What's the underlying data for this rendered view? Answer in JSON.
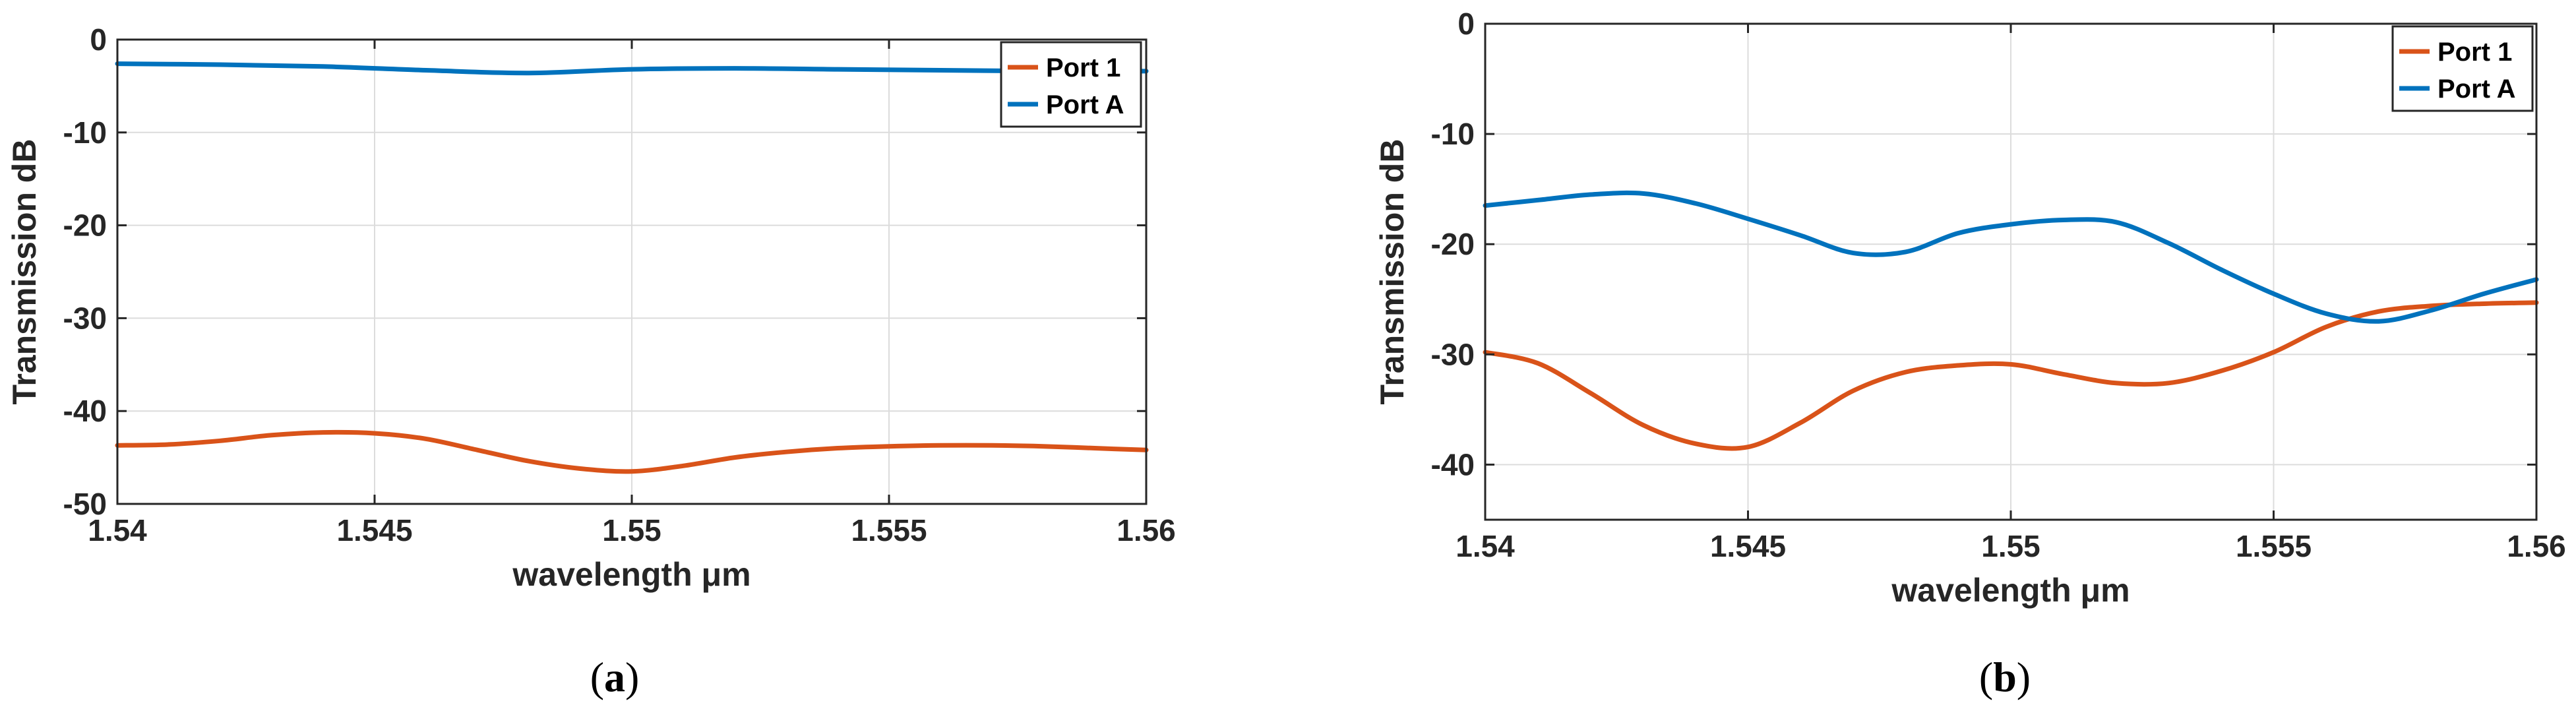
{
  "chart_data": [
    {
      "type": "line",
      "panel_label": "(a)",
      "panel_letter": "a",
      "xlabel": "wavelength μm",
      "ylabel": "Transmission dB",
      "xlim": [
        1.54,
        1.56
      ],
      "ylim": [
        -50,
        0
      ],
      "xticks": [
        1.54,
        1.545,
        1.55,
        1.555,
        1.56
      ],
      "xtick_labels": [
        "1.54",
        "1.545",
        "1.55",
        "1.555",
        "1.56"
      ],
      "yticks": [
        0,
        -10,
        -20,
        -30,
        -40,
        -50
      ],
      "ytick_labels": [
        "0",
        "-10",
        "-20",
        "-30",
        "-40",
        "-50"
      ],
      "grid": true,
      "legend_position": "top-right",
      "series": [
        {
          "name": "Port 1",
          "color": "#d95319",
          "x": [
            1.54,
            1.541,
            1.542,
            1.543,
            1.544,
            1.545,
            1.546,
            1.547,
            1.548,
            1.549,
            1.55,
            1.551,
            1.552,
            1.553,
            1.554,
            1.555,
            1.556,
            1.557,
            1.558,
            1.559,
            1.56
          ],
          "y": [
            -43.7,
            -43.6,
            -43.2,
            -42.6,
            -42.3,
            -42.4,
            -43.0,
            -44.2,
            -45.4,
            -46.2,
            -46.5,
            -45.9,
            -45.0,
            -44.4,
            -44.0,
            -43.8,
            -43.7,
            -43.7,
            -43.8,
            -44.0,
            -44.2
          ]
        },
        {
          "name": "Port A",
          "color": "#0072bd",
          "x": [
            1.54,
            1.542,
            1.544,
            1.546,
            1.548,
            1.55,
            1.552,
            1.554,
            1.556,
            1.558,
            1.56
          ],
          "y": [
            -2.6,
            -2.7,
            -2.9,
            -3.3,
            -3.6,
            -3.2,
            -3.1,
            -3.2,
            -3.3,
            -3.4,
            -3.4
          ]
        }
      ]
    },
    {
      "type": "line",
      "panel_label": "(b)",
      "panel_letter": "b",
      "xlabel": "wavelength μm",
      "ylabel": "Transmission dB",
      "xlim": [
        1.54,
        1.56
      ],
      "ylim": [
        -45,
        0
      ],
      "xticks": [
        1.54,
        1.545,
        1.55,
        1.555,
        1.56
      ],
      "xtick_labels": [
        "1.54",
        "1.545",
        "1.55",
        "1.555",
        "1.56"
      ],
      "yticks": [
        0,
        -10,
        -20,
        -30,
        -40
      ],
      "ytick_labels": [
        "0",
        "-10",
        "-20",
        "-30",
        "-40"
      ],
      "grid": true,
      "legend_position": "top-right",
      "series": [
        {
          "name": "Port 1",
          "color": "#d95319",
          "x": [
            1.54,
            1.541,
            1.542,
            1.543,
            1.544,
            1.545,
            1.546,
            1.547,
            1.548,
            1.549,
            1.55,
            1.551,
            1.552,
            1.553,
            1.554,
            1.555,
            1.556,
            1.557,
            1.558,
            1.559,
            1.56
          ],
          "y": [
            -29.8,
            -30.8,
            -33.5,
            -36.4,
            -38.1,
            -38.4,
            -36.2,
            -33.3,
            -31.6,
            -31.0,
            -30.9,
            -31.8,
            -32.6,
            -32.6,
            -31.5,
            -29.8,
            -27.5,
            -26.1,
            -25.6,
            -25.4,
            -25.3
          ]
        },
        {
          "name": "Port A",
          "color": "#0072bd",
          "x": [
            1.54,
            1.541,
            1.542,
            1.543,
            1.544,
            1.545,
            1.546,
            1.547,
            1.548,
            1.549,
            1.55,
            1.551,
            1.552,
            1.553,
            1.554,
            1.555,
            1.556,
            1.557,
            1.558,
            1.559,
            1.56
          ],
          "y": [
            -16.5,
            -16.0,
            -15.5,
            -15.4,
            -16.3,
            -17.7,
            -19.2,
            -20.8,
            -20.7,
            -19.0,
            -18.2,
            -17.8,
            -18.0,
            -19.9,
            -22.3,
            -24.5,
            -26.3,
            -27.0,
            -26.0,
            -24.5,
            -23.2
          ]
        }
      ]
    }
  ]
}
